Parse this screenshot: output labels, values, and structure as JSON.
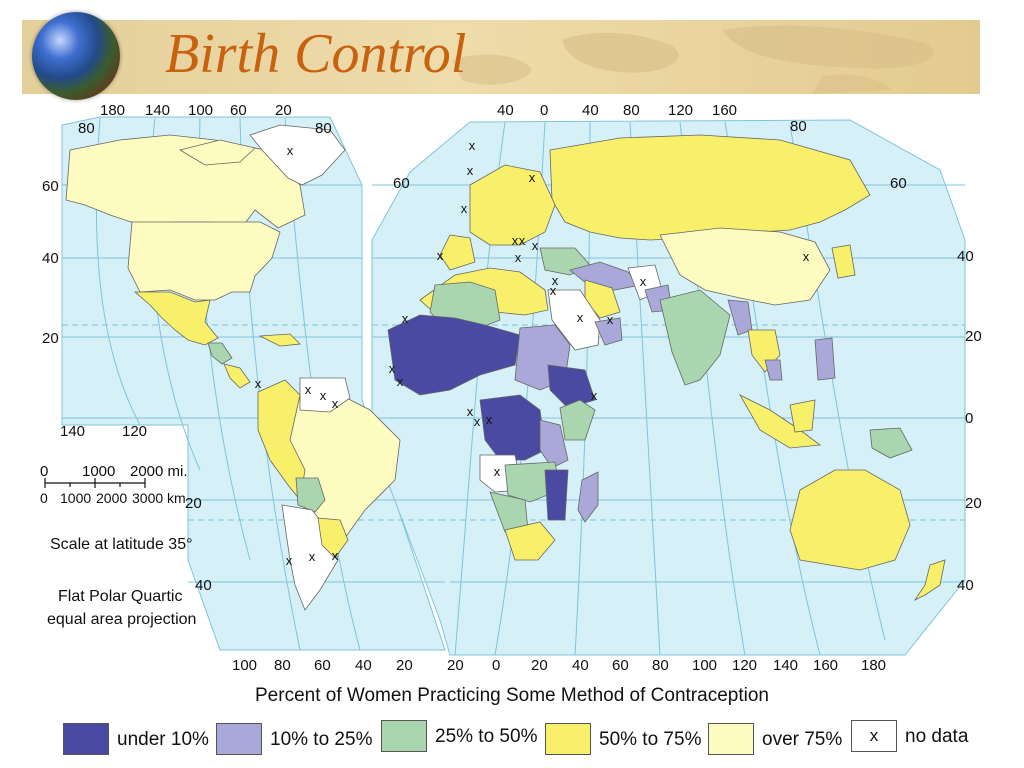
{
  "title": "Birth Control",
  "map": {
    "colors": {
      "ocean": "#d6f0f8",
      "no_data": "#ffffff",
      "under_10": "#4a4aa3",
      "p10_25": "#a9a8d9",
      "p25_50": "#a9d6ae",
      "p50_75": "#f8f06a",
      "over_75": "#fdfbbf"
    },
    "lon_labels_top_west": [
      "180",
      "140",
      "100",
      "60",
      "20"
    ],
    "lon_labels_top_east": [
      "40",
      "0",
      "40",
      "80",
      "120",
      "160"
    ],
    "lon_labels_bottom": [
      "100",
      "80",
      "60",
      "40",
      "20",
      "20",
      "0",
      "20",
      "40",
      "60",
      "80",
      "100",
      "120",
      "140",
      "160",
      "180"
    ],
    "lon_labels_west_mid": [
      "140",
      "120"
    ],
    "lat_labels_west": [
      "80",
      "60",
      "40",
      "20"
    ],
    "lat_labels_west_south": [
      "20",
      "40"
    ],
    "lat_labels_east_top": [
      "80",
      "60",
      "80",
      "60"
    ],
    "lat_labels_right": [
      "40",
      "20",
      "0",
      "20",
      "40"
    ]
  },
  "scale": {
    "miles_labels": [
      "0",
      "1000",
      "2000 mi."
    ],
    "km_labels": [
      "0",
      "1000",
      "2000",
      "3000 km"
    ],
    "latitude_note": "Scale at latitude 35°",
    "projection_line1": "Flat Polar Quartic",
    "projection_line2": "equal area projection"
  },
  "legend": {
    "title": "Percent of Women Practicing Some Method of Contraception",
    "items": [
      {
        "label": "under 10%",
        "color": "#4a4aa3",
        "mark": ""
      },
      {
        "label": "10% to 25%",
        "color": "#a9a8d9",
        "mark": ""
      },
      {
        "label": "25% to 50%",
        "color": "#a9d6ae",
        "mark": ""
      },
      {
        "label": "50% to 75%",
        "color": "#f8f06a",
        "mark": ""
      },
      {
        "label": "over 75%",
        "color": "#fdfbbf",
        "mark": ""
      },
      {
        "label": "no data",
        "color": "#ffffff",
        "mark": "x"
      }
    ]
  },
  "no_data_marker": "x"
}
